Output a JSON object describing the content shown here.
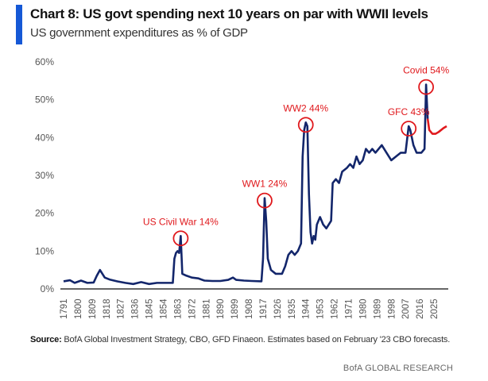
{
  "chart_data": {
    "type": "line",
    "title": "Chart 8: US govt spending next 10 years on par with WWII levels",
    "subtitle": "US government expenditures as % of GDP",
    "ylim": [
      0,
      60
    ],
    "yticks": [
      "0%",
      "10%",
      "20%",
      "30%",
      "40%",
      "50%",
      "60%"
    ],
    "xlim": [
      1791,
      2033
    ],
    "xticks": [
      "1791",
      "1800",
      "1809",
      "1818",
      "1827",
      "1836",
      "1845",
      "1854",
      "1863",
      "1872",
      "1881",
      "1890",
      "1899",
      "1908",
      "1917",
      "1926",
      "1935",
      "1944",
      "1953",
      "1962",
      "1971",
      "1980",
      "1989",
      "1998",
      "2007",
      "2016",
      "2025"
    ],
    "grid": false,
    "series": [
      {
        "color": "#13266b",
        "points": [
          [
            1791,
            2
          ],
          [
            1795,
            2.3
          ],
          [
            1798,
            1.6
          ],
          [
            1802,
            2.2
          ],
          [
            1806,
            1.6
          ],
          [
            1810,
            1.7
          ],
          [
            1812,
            3.5
          ],
          [
            1814,
            5
          ],
          [
            1817,
            3
          ],
          [
            1820,
            2.5
          ],
          [
            1825,
            2
          ],
          [
            1830,
            1.6
          ],
          [
            1835,
            1.3
          ],
          [
            1840,
            1.8
          ],
          [
            1845,
            1.3
          ],
          [
            1850,
            1.6
          ],
          [
            1855,
            1.6
          ],
          [
            1860,
            1.6
          ],
          [
            1861,
            8
          ],
          [
            1862,
            9.5
          ],
          [
            1863,
            10
          ],
          [
            1864,
            9.5
          ],
          [
            1865,
            14
          ],
          [
            1866,
            4
          ],
          [
            1868,
            3.6
          ],
          [
            1872,
            3
          ],
          [
            1876,
            2.8
          ],
          [
            1880,
            2.2
          ],
          [
            1885,
            2.1
          ],
          [
            1890,
            2.1
          ],
          [
            1895,
            2.4
          ],
          [
            1898,
            3
          ],
          [
            1900,
            2.4
          ],
          [
            1905,
            2.2
          ],
          [
            1910,
            2.1
          ],
          [
            1916,
            2
          ],
          [
            1917,
            8
          ],
          [
            1918,
            24
          ],
          [
            1919,
            18
          ],
          [
            1920,
            8
          ],
          [
            1922,
            5
          ],
          [
            1925,
            4
          ],
          [
            1929,
            4
          ],
          [
            1931,
            6
          ],
          [
            1933,
            9
          ],
          [
            1935,
            10
          ],
          [
            1937,
            9
          ],
          [
            1939,
            10
          ],
          [
            1941,
            12
          ],
          [
            1942,
            35
          ],
          [
            1943,
            42
          ],
          [
            1944,
            44
          ],
          [
            1945,
            43
          ],
          [
            1946,
            25
          ],
          [
            1947,
            15
          ],
          [
            1948,
            12
          ],
          [
            1949,
            14
          ],
          [
            1950,
            13
          ],
          [
            1951,
            17
          ],
          [
            1953,
            19
          ],
          [
            1955,
            17
          ],
          [
            1957,
            16
          ],
          [
            1960,
            18
          ],
          [
            1961,
            28
          ],
          [
            1963,
            29
          ],
          [
            1965,
            28
          ],
          [
            1967,
            31
          ],
          [
            1970,
            32
          ],
          [
            1972,
            33
          ],
          [
            1974,
            32
          ],
          [
            1976,
            35
          ],
          [
            1978,
            33
          ],
          [
            1980,
            34
          ],
          [
            1982,
            37
          ],
          [
            1984,
            36
          ],
          [
            1986,
            37
          ],
          [
            1988,
            36
          ],
          [
            1992,
            38
          ],
          [
            1995,
            36
          ],
          [
            1998,
            34
          ],
          [
            2001,
            35
          ],
          [
            2004,
            36
          ],
          [
            2007,
            36
          ],
          [
            2009,
            43
          ],
          [
            2010,
            42
          ],
          [
            2012,
            38
          ],
          [
            2014,
            36
          ],
          [
            2017,
            36
          ],
          [
            2019,
            37
          ],
          [
            2020,
            54
          ],
          [
            2021,
            45
          ]
        ]
      },
      {
        "color": "#e0191d",
        "points": [
          [
            2021,
            45
          ],
          [
            2022,
            42
          ],
          [
            2024,
            41
          ],
          [
            2026,
            41
          ],
          [
            2028,
            41.5
          ],
          [
            2031,
            42.5
          ],
          [
            2033,
            43
          ]
        ]
      }
    ],
    "annotations": [
      {
        "text": "US Civil War 14%",
        "x": 1865,
        "y": 14
      },
      {
        "text": "WW1 24%",
        "x": 1918,
        "y": 24
      },
      {
        "text": "WW2 44%",
        "x": 1944,
        "y": 44
      },
      {
        "text": "GFC 43%",
        "x": 2009,
        "y": 43
      },
      {
        "text": "Covid 54%",
        "x": 2020,
        "y": 54
      }
    ],
    "annotation_color": "#e0191d"
  },
  "source": {
    "label": "Source:",
    "text": " BofA Global Investment Strategy, CBO, GFD Finaeon. Estimates based on February '23 CBO forecasts."
  },
  "brand": "BofA GLOBAL RESEARCH",
  "accent": "#1558d6"
}
